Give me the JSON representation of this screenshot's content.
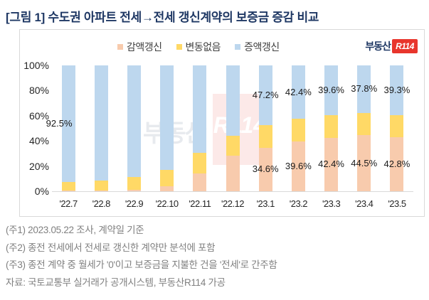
{
  "figure_title": "[그림 1] 수도권 아파트 전세→전세 갱신계약의 보증금 증감 비교",
  "brand": {
    "logo_text": "부동산",
    "logo_badge": "R114"
  },
  "watermark": {
    "text": "부동산",
    "badge": "R114"
  },
  "legend": [
    {
      "label": "감액갱신",
      "color": "#F8CBAD"
    },
    {
      "label": "변동없음",
      "color": "#FFD966"
    },
    {
      "label": "증액갱신",
      "color": "#BDD7EE"
    }
  ],
  "chart_data": {
    "type": "bar",
    "stacked": true,
    "percent": true,
    "grid": false,
    "legend_position": "top",
    "title": "[그림 1] 수도권 아파트 전세→전세 갱신계약의 보증금 증감 비교",
    "xlabel": "",
    "ylabel": "",
    "y_axis": {
      "min": 0,
      "max": 100,
      "ticks": [
        "0%",
        "20%",
        "40%",
        "60%",
        "80%",
        "100%"
      ]
    },
    "categories": [
      "'22.7",
      "'22.8",
      "'22.9",
      "'22.10",
      "'22.11",
      "'22.12",
      "'23.1",
      "'23.2",
      "'23.3",
      "'23.4",
      "'23.5"
    ],
    "series": [
      {
        "name": "감액갱신",
        "color": "#F8CBAD",
        "values": [
          0.5,
          0.5,
          1.0,
          4.0,
          14.0,
          28.0,
          34.6,
          39.6,
          42.4,
          44.5,
          42.8
        ]
      },
      {
        "name": "변동없음",
        "color": "#FFD966",
        "values": [
          7.0,
          8.0,
          10.5,
          13.0,
          16.5,
          16.0,
          18.2,
          18.0,
          18.0,
          17.7,
          17.9
        ]
      },
      {
        "name": "증액갱신",
        "color": "#BDD7EE",
        "values": [
          92.5,
          91.5,
          88.5,
          83.0,
          69.5,
          56.0,
          47.2,
          42.4,
          39.6,
          37.8,
          39.3
        ]
      }
    ],
    "data_labels": [
      {
        "series": "증액갱신",
        "category": "'22.7",
        "text": "92.5%",
        "dx": -13
      },
      {
        "series": "증액갱신",
        "category": "'23.1",
        "text": "47.2%",
        "dx": 0
      },
      {
        "series": "증액갱신",
        "category": "'23.2",
        "text": "42.4%",
        "dx": 0
      },
      {
        "series": "증액갱신",
        "category": "'23.3",
        "text": "39.6%",
        "dx": 0
      },
      {
        "series": "증액갱신",
        "category": "'23.4",
        "text": "37.8%",
        "dx": 0
      },
      {
        "series": "증액갱신",
        "category": "'23.5",
        "text": "39.3%",
        "dx": 0
      },
      {
        "series": "감액갱신",
        "category": "'23.1",
        "text": "34.6%",
        "dx": 0
      },
      {
        "series": "감액갱신",
        "category": "'23.2",
        "text": "39.6%",
        "dx": 0
      },
      {
        "series": "감액갱신",
        "category": "'23.3",
        "text": "42.4%",
        "dx": 0
      },
      {
        "series": "감액갱신",
        "category": "'23.4",
        "text": "44.5%",
        "dx": 0
      },
      {
        "series": "감액갱신",
        "category": "'23.5",
        "text": "42.8%",
        "dx": 0
      }
    ]
  },
  "footnotes": [
    "(주1) 2023.05.22 조사, 계약일 기준",
    "(주2) 종전 전세에서 전세로 갱신한 계약만 분석에 포함",
    "(주3) 종전 계약 중 월세가 '0'이고 보증금을 지불한 건을 '전세'로 간주함",
    "자료: 국토교통부 실거래가 공개시스템, 부동산R114 가공"
  ]
}
